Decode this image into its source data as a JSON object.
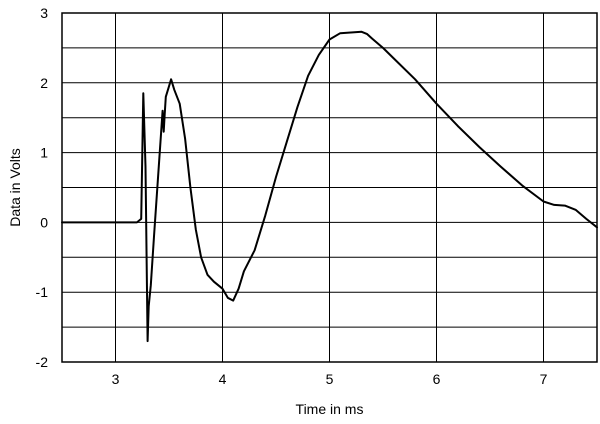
{
  "chart_data": {
    "type": "line",
    "title": "",
    "xlabel": "Time in ms",
    "ylabel": "Data in Volts",
    "xlim": [
      2.5,
      7.5
    ],
    "ylim": [
      -2,
      3
    ],
    "grid": true,
    "legend": "none",
    "x_ticks": [
      3,
      4,
      5,
      6,
      7
    ],
    "y_ticks": [
      3,
      2,
      1,
      0,
      -1,
      -2
    ],
    "x_tick_labels": [
      "3",
      "4",
      "5",
      "6",
      "7"
    ],
    "y_tick_labels": [
      "3",
      "2",
      "1",
      "0",
      "-1",
      "-2"
    ],
    "line_color": "#000000",
    "series": [
      {
        "x": [
          2.5,
          3.0,
          3.2,
          3.24,
          3.26,
          3.28,
          3.3,
          3.31,
          3.33,
          3.36,
          3.4,
          3.44,
          3.45,
          3.46,
          3.47,
          3.5,
          3.52,
          3.55,
          3.6,
          3.65,
          3.7,
          3.75,
          3.8,
          3.86,
          3.92,
          4.0,
          4.05,
          4.1,
          4.15,
          4.2,
          4.3,
          4.4,
          4.5,
          4.6,
          4.7,
          4.8,
          4.9,
          5.0,
          5.1,
          5.2,
          5.3,
          5.35,
          5.4,
          5.5,
          5.6,
          5.8,
          6.0,
          6.2,
          6.4,
          6.6,
          6.8,
          7.0,
          7.1,
          7.2,
          7.3,
          7.4,
          7.5
        ],
        "y": [
          0.0,
          0.0,
          0.0,
          0.05,
          1.85,
          0.8,
          -1.7,
          -1.2,
          -0.9,
          -0.2,
          0.7,
          1.6,
          1.3,
          1.55,
          1.8,
          1.95,
          2.05,
          1.9,
          1.7,
          1.2,
          0.5,
          -0.1,
          -0.5,
          -0.75,
          -0.85,
          -0.95,
          -1.08,
          -1.12,
          -0.95,
          -0.7,
          -0.4,
          0.1,
          0.65,
          1.15,
          1.65,
          2.1,
          2.4,
          2.62,
          2.71,
          2.72,
          2.73,
          2.7,
          2.63,
          2.5,
          2.35,
          2.05,
          1.7,
          1.38,
          1.08,
          0.8,
          0.53,
          0.3,
          0.25,
          0.24,
          0.18,
          0.05,
          -0.07
        ]
      }
    ]
  }
}
